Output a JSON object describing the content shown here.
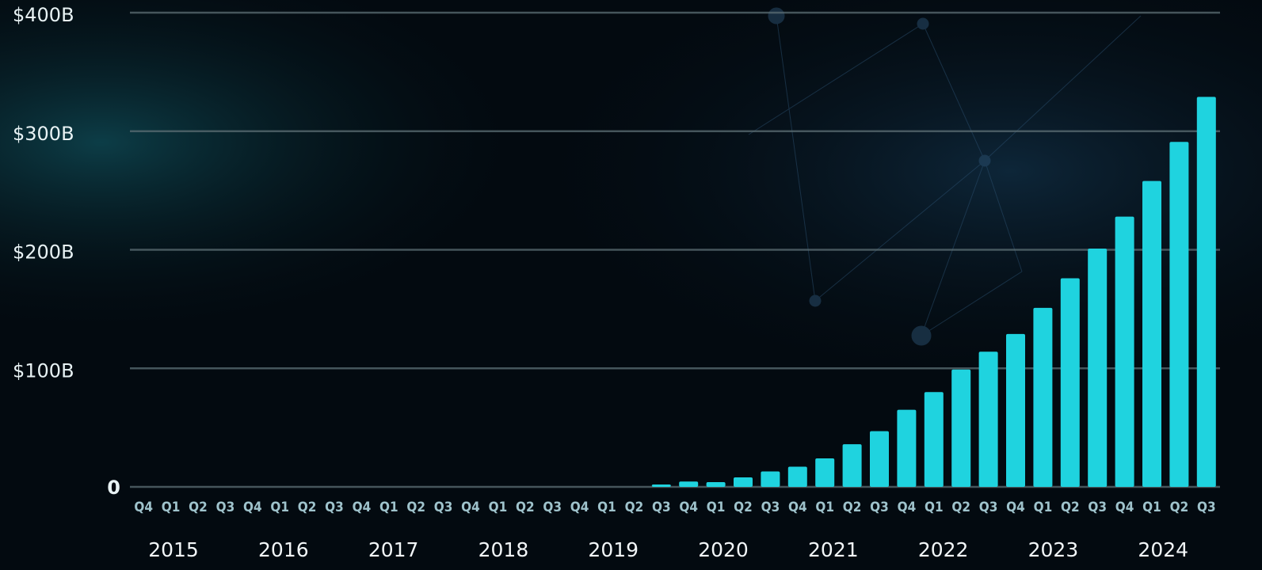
{
  "chart_data": {
    "type": "bar",
    "categories": [
      "Q4",
      "Q1",
      "Q2",
      "Q3",
      "Q4",
      "Q1",
      "Q2",
      "Q3",
      "Q4",
      "Q1",
      "Q2",
      "Q3",
      "Q4",
      "Q1",
      "Q2",
      "Q3",
      "Q4",
      "Q1",
      "Q2",
      "Q3",
      "Q4",
      "Q1",
      "Q2",
      "Q3",
      "Q4",
      "Q1",
      "Q2",
      "Q3",
      "Q4",
      "Q1",
      "Q2",
      "Q3",
      "Q4",
      "Q1",
      "Q2",
      "Q3",
      "Q4",
      "Q1",
      "Q2",
      "Q3"
    ],
    "years": [
      "2015",
      "2016",
      "2017",
      "2018",
      "2019",
      "2020",
      "2021",
      "2022",
      "2023",
      "2024"
    ],
    "values": [
      0,
      0,
      0,
      0,
      0,
      0,
      0,
      0,
      0,
      0,
      0,
      0,
      0,
      0,
      0,
      0,
      0,
      0,
      0,
      2,
      4.5,
      4,
      8,
      13,
      17,
      24,
      36,
      47,
      65,
      80,
      99,
      114,
      129,
      151,
      176,
      201,
      228,
      258,
      291,
      329
    ],
    "color": "#1fd3df",
    "ylim": [
      0,
      400
    ],
    "yticks": [
      0,
      {
        "value": 100,
        "label": "$100B"
      },
      {
        "value": 200,
        "label": "$200B"
      },
      {
        "value": 300,
        "label": "$300B"
      },
      {
        "value": 400,
        "label": "$400B"
      }
    ],
    "grid": true
  }
}
